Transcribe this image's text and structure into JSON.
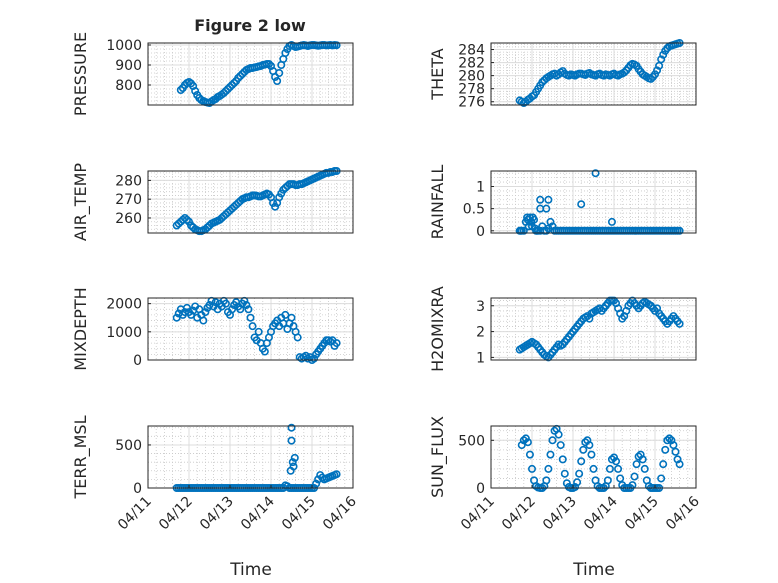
{
  "figure": {
    "title": "Figure 2 low",
    "xlabel": "Time"
  },
  "chart_data": [
    {
      "type": "scatter",
      "ylabel": "PRESSURE",
      "yticks": [
        800,
        900,
        1000
      ],
      "ylim": [
        700,
        1010
      ],
      "x": [
        11.8,
        11.85,
        11.9,
        11.95,
        12.0,
        12.05,
        12.1,
        12.15,
        12.2,
        12.25,
        12.3,
        12.35,
        12.4,
        12.45,
        12.5,
        12.55,
        12.6,
        12.65,
        12.7,
        12.75,
        12.8,
        12.85,
        12.9,
        12.95,
        13.0,
        13.05,
        13.1,
        13.15,
        13.2,
        13.25,
        13.3,
        13.35,
        13.4,
        13.45,
        13.5,
        13.55,
        13.6,
        13.65,
        13.7,
        13.75,
        13.8,
        13.85,
        13.9,
        13.95,
        14.0,
        14.05,
        14.1,
        14.15,
        14.2,
        14.25,
        14.3,
        14.35,
        14.4,
        14.45,
        14.5,
        14.55,
        14.6,
        14.65,
        14.7,
        14.75,
        14.8,
        14.85,
        14.9,
        14.95,
        15.0,
        15.05,
        15.1,
        15.15,
        15.2,
        15.25,
        15.3,
        15.35,
        15.4,
        15.45,
        15.5,
        15.55,
        15.6
      ],
      "y": [
        775,
        785,
        800,
        810,
        815,
        808,
        795,
        770,
        750,
        735,
        725,
        720,
        715,
        712,
        710,
        718,
        725,
        730,
        740,
        745,
        752,
        760,
        770,
        780,
        790,
        800,
        810,
        820,
        835,
        845,
        855,
        865,
        875,
        880,
        885,
        885,
        888,
        890,
        893,
        895,
        900,
        902,
        905,
        905,
        895,
        870,
        840,
        820,
        860,
        900,
        930,
        960,
        980,
        995,
        1000,
        995,
        990,
        992,
        995,
        998,
        1000,
        998,
        995,
        998,
        1000,
        1000,
        998,
        996,
        998,
        1000,
        1000,
        998,
        999,
        1000,
        998,
        1000,
        999
      ]
    },
    {
      "type": "scatter",
      "ylabel": "THETA",
      "yticks": [
        276,
        278,
        280,
        282,
        284
      ],
      "ylim": [
        275.5,
        285
      ],
      "x": [
        11.7,
        11.75,
        11.8,
        11.85,
        11.9,
        11.95,
        12.0,
        12.05,
        12.1,
        12.15,
        12.2,
        12.25,
        12.3,
        12.35,
        12.4,
        12.45,
        12.5,
        12.55,
        12.6,
        12.65,
        12.7,
        12.75,
        12.8,
        12.85,
        12.9,
        12.95,
        13.0,
        13.05,
        13.1,
        13.15,
        13.2,
        13.25,
        13.3,
        13.35,
        13.4,
        13.45,
        13.5,
        13.55,
        13.6,
        13.65,
        13.7,
        13.75,
        13.8,
        13.85,
        13.9,
        13.95,
        14.0,
        14.05,
        14.1,
        14.15,
        14.2,
        14.25,
        14.3,
        14.35,
        14.4,
        14.45,
        14.5,
        14.55,
        14.6,
        14.65,
        14.7,
        14.75,
        14.8,
        14.85,
        14.9,
        14.95,
        15.0,
        15.05,
        15.1,
        15.15,
        15.2,
        15.25,
        15.3,
        15.35,
        15.4,
        15.45,
        15.5,
        15.55,
        15.6
      ],
      "y": [
        276.2,
        276.0,
        275.8,
        276.0,
        276.3,
        276.5,
        276.8,
        277.0,
        277.5,
        278.0,
        278.5,
        279.0,
        279.3,
        279.6,
        279.8,
        280.0,
        280.2,
        280.3,
        280.0,
        280.2,
        280.5,
        280.7,
        280.3,
        280.1,
        280.0,
        280.2,
        280.1,
        280.0,
        280.2,
        280.3,
        280.3,
        280.2,
        280.1,
        280.3,
        280.4,
        280.2,
        280.1,
        280.0,
        280.2,
        280.3,
        280.1,
        280.0,
        280.2,
        280.1,
        280.0,
        280.2,
        280.3,
        280.1,
        280.0,
        280.2,
        280.3,
        280.5,
        280.8,
        281.2,
        281.6,
        281.8,
        281.7,
        281.5,
        281.0,
        280.6,
        280.2,
        280.0,
        279.8,
        279.6,
        279.5,
        279.8,
        280.2,
        280.8,
        281.5,
        282.5,
        283.2,
        283.8,
        284.2,
        284.5,
        284.6,
        284.7,
        284.8,
        284.9,
        285.0
      ]
    },
    {
      "type": "scatter",
      "ylabel": "AIR_TEMP",
      "yticks": [
        260,
        270,
        280
      ],
      "ylim": [
        252,
        285
      ],
      "x": [
        11.7,
        11.75,
        11.8,
        11.85,
        11.9,
        11.95,
        12.0,
        12.05,
        12.1,
        12.15,
        12.2,
        12.25,
        12.3,
        12.35,
        12.4,
        12.45,
        12.5,
        12.55,
        12.6,
        12.65,
        12.7,
        12.75,
        12.8,
        12.85,
        12.9,
        12.95,
        13.0,
        13.05,
        13.1,
        13.15,
        13.2,
        13.25,
        13.3,
        13.35,
        13.4,
        13.45,
        13.5,
        13.55,
        13.6,
        13.65,
        13.7,
        13.75,
        13.8,
        13.85,
        13.9,
        13.95,
        14.0,
        14.05,
        14.1,
        14.15,
        14.2,
        14.25,
        14.3,
        14.35,
        14.4,
        14.45,
        14.5,
        14.55,
        14.6,
        14.65,
        14.7,
        14.75,
        14.8,
        14.85,
        14.9,
        14.95,
        15.0,
        15.05,
        15.1,
        15.15,
        15.2,
        15.25,
        15.3,
        15.35,
        15.4,
        15.45,
        15.5,
        15.55,
        15.6
      ],
      "y": [
        256,
        257,
        258,
        259,
        260,
        259,
        258,
        256,
        255,
        254,
        253.5,
        253,
        253,
        253.5,
        254,
        255,
        256,
        257,
        257.5,
        258,
        258.5,
        259,
        260,
        261,
        262,
        263,
        264,
        265,
        266,
        267,
        268,
        269,
        270,
        270.5,
        271,
        271,
        271.5,
        272,
        272,
        271.8,
        271.5,
        271.5,
        272,
        272.5,
        273,
        272.5,
        271,
        268,
        266,
        268,
        271,
        273,
        275,
        276,
        277,
        278,
        278,
        278,
        277.5,
        277.5,
        278,
        278,
        278.5,
        279,
        279.5,
        280,
        280.5,
        281,
        281.5,
        282,
        282.5,
        283,
        283.5,
        284,
        284,
        284.5,
        284.5,
        285,
        285
      ]
    },
    {
      "type": "scatter",
      "ylabel": "RAINFALL",
      "yticks": [
        0,
        0.5,
        1
      ],
      "yticklabels": [
        "0",
        "0.5",
        "1"
      ],
      "ylim": [
        -0.05,
        1.35
      ],
      "x": [
        11.7,
        11.72,
        11.75,
        11.8,
        11.85,
        11.88,
        11.9,
        11.92,
        11.95,
        11.98,
        12.0,
        12.02,
        12.05,
        12.08,
        12.1,
        12.12,
        12.15,
        12.2,
        12.25,
        12.3,
        12.35,
        12.4,
        12.45,
        12.5,
        12.55,
        12.6,
        12.65,
        12.7,
        12.75,
        12.8,
        12.85,
        12.9,
        12.95,
        13.0,
        13.05,
        13.1,
        13.15,
        13.2,
        13.25,
        13.3,
        13.35,
        13.4,
        13.45,
        13.5,
        13.55,
        13.6,
        13.65,
        13.7,
        13.75,
        13.8,
        13.85,
        13.9,
        13.95,
        14.0,
        14.05,
        14.1,
        14.15,
        14.2,
        14.25,
        14.3,
        14.35,
        14.4,
        14.45,
        14.5,
        14.55,
        14.6,
        14.65,
        14.7,
        14.75,
        14.8,
        14.85,
        14.9,
        14.95,
        15.0,
        15.05,
        15.1,
        15.15,
        15.2,
        15.25,
        15.3,
        15.35,
        15.4,
        15.45,
        15.5,
        15.55,
        15.6,
        12.2,
        12.2,
        12.35,
        12.4,
        13.2,
        13.55,
        13.95
      ],
      "y": [
        0,
        0,
        0,
        0,
        0.2,
        0.3,
        0.25,
        0.1,
        0.3,
        0.2,
        0.1,
        0.3,
        0.25,
        0.05,
        0,
        0,
        0,
        0,
        0.1,
        0,
        0,
        0.05,
        0.2,
        0.1,
        0,
        0,
        0,
        0,
        0,
        0,
        0,
        0,
        0,
        0,
        0,
        0,
        0,
        0,
        0,
        0,
        0,
        0,
        0,
        0,
        0,
        0,
        0,
        0,
        0,
        0,
        0,
        0,
        0,
        0,
        0,
        0,
        0,
        0,
        0,
        0,
        0,
        0,
        0,
        0,
        0,
        0,
        0,
        0,
        0,
        0,
        0,
        0,
        0,
        0,
        0,
        0,
        0,
        0,
        0,
        0,
        0,
        0,
        0,
        0,
        0,
        0,
        0.7,
        0.5,
        0.5,
        0.7,
        0.6,
        1.3,
        0.2
      ]
    },
    {
      "type": "scatter",
      "ylabel": "MIXDEPTH",
      "yticks": [
        0,
        1000,
        2000
      ],
      "ylim": [
        0,
        2200
      ],
      "x": [
        11.7,
        11.75,
        11.8,
        11.85,
        11.9,
        11.95,
        12.0,
        12.05,
        12.1,
        12.15,
        12.2,
        12.25,
        12.3,
        12.35,
        12.4,
        12.45,
        12.5,
        12.55,
        12.6,
        12.65,
        12.7,
        12.75,
        12.8,
        12.85,
        12.9,
        12.95,
        13.0,
        13.05,
        13.1,
        13.15,
        13.2,
        13.25,
        13.3,
        13.35,
        13.4,
        13.45,
        13.5,
        13.55,
        13.6,
        13.65,
        13.7,
        13.75,
        13.8,
        13.85,
        13.9,
        13.95,
        14.0,
        14.05,
        14.1,
        14.15,
        14.2,
        14.25,
        14.3,
        14.35,
        14.4,
        14.45,
        14.5,
        14.55,
        14.6,
        14.65,
        14.7,
        14.75,
        14.8,
        14.85,
        14.9,
        14.95,
        15.0,
        15.05,
        15.1,
        15.15,
        15.2,
        15.25,
        15.3,
        15.35,
        15.4,
        15.45,
        15.5,
        15.55,
        15.6
      ],
      "y": [
        1500,
        1650,
        1800,
        1600,
        1700,
        1850,
        1700,
        1600,
        1750,
        1900,
        1500,
        1800,
        1600,
        1400,
        1700,
        1850,
        1950,
        2100,
        1900,
        2050,
        1800,
        2000,
        1900,
        2100,
        2000,
        1700,
        1600,
        1800,
        1950,
        2050,
        1900,
        1800,
        2000,
        2100,
        1950,
        1800,
        1500,
        1200,
        800,
        700,
        1000,
        600,
        400,
        300,
        600,
        800,
        1000,
        1200,
        1300,
        1400,
        1200,
        1500,
        1300,
        1600,
        1100,
        1300,
        1500,
        1200,
        1000,
        800,
        100,
        50,
        100,
        150,
        50,
        100,
        0,
        50,
        200,
        300,
        400,
        500,
        600,
        700,
        700,
        650,
        700,
        500,
        600
      ]
    },
    {
      "type": "scatter",
      "ylabel": "H2OMIXRA",
      "yticks": [
        1,
        2,
        3
      ],
      "ylim": [
        0.9,
        3.3
      ],
      "x": [
        11.7,
        11.75,
        11.8,
        11.85,
        11.9,
        11.95,
        12.0,
        12.05,
        12.1,
        12.15,
        12.2,
        12.25,
        12.3,
        12.35,
        12.4,
        12.45,
        12.5,
        12.55,
        12.6,
        12.65,
        12.7,
        12.75,
        12.8,
        12.85,
        12.9,
        12.95,
        13.0,
        13.05,
        13.1,
        13.15,
        13.2,
        13.25,
        13.3,
        13.35,
        13.4,
        13.45,
        13.5,
        13.55,
        13.6,
        13.65,
        13.7,
        13.75,
        13.8,
        13.85,
        13.9,
        13.95,
        14.0,
        14.05,
        14.1,
        14.15,
        14.2,
        14.25,
        14.3,
        14.35,
        14.4,
        14.45,
        14.5,
        14.55,
        14.6,
        14.65,
        14.7,
        14.75,
        14.8,
        14.85,
        14.9,
        14.95,
        15.0,
        15.05,
        15.1,
        15.15,
        15.2,
        15.25,
        15.3,
        15.35,
        15.4,
        15.45,
        15.5,
        15.55,
        15.6
      ],
      "y": [
        1.3,
        1.35,
        1.4,
        1.45,
        1.5,
        1.55,
        1.6,
        1.55,
        1.5,
        1.4,
        1.3,
        1.2,
        1.1,
        1.05,
        1.0,
        1.1,
        1.2,
        1.3,
        1.4,
        1.5,
        1.45,
        1.5,
        1.6,
        1.7,
        1.8,
        1.9,
        2.0,
        2.1,
        2.2,
        2.3,
        2.4,
        2.5,
        2.55,
        2.6,
        2.5,
        2.7,
        2.75,
        2.8,
        2.85,
        2.9,
        2.8,
        2.9,
        3.0,
        3.1,
        3.2,
        3.2,
        3.2,
        3.1,
        2.9,
        2.7,
        2.5,
        2.6,
        2.8,
        3.0,
        3.1,
        3.2,
        3.1,
        3.0,
        2.9,
        3.0,
        3.1,
        3.15,
        3.1,
        3.05,
        3.0,
        2.9,
        2.8,
        2.9,
        2.7,
        2.6,
        2.5,
        2.4,
        2.3,
        2.4,
        2.5,
        2.6,
        2.5,
        2.4,
        2.3
      ]
    },
    {
      "type": "scatter",
      "ylabel": "TERR_MSL",
      "yticks": [
        0,
        500
      ],
      "ylim": [
        0,
        720
      ],
      "x": [
        11.7,
        11.75,
        11.8,
        11.85,
        11.9,
        11.95,
        12.0,
        12.05,
        12.1,
        12.15,
        12.2,
        12.25,
        12.3,
        12.35,
        12.4,
        12.45,
        12.5,
        12.55,
        12.6,
        12.65,
        12.7,
        12.75,
        12.8,
        12.85,
        12.9,
        12.95,
        13.0,
        13.05,
        13.1,
        13.15,
        13.2,
        13.25,
        13.3,
        13.35,
        13.4,
        13.45,
        13.5,
        13.55,
        13.6,
        13.65,
        13.7,
        13.75,
        13.8,
        13.85,
        13.9,
        13.95,
        14.0,
        14.05,
        14.1,
        14.15,
        14.2,
        14.25,
        14.3,
        14.35,
        14.4,
        14.45,
        14.5,
        14.55,
        14.6,
        14.65,
        14.7,
        14.75,
        14.8,
        14.85,
        14.9,
        14.95,
        15.0,
        15.05,
        15.1,
        15.15,
        15.2,
        15.25,
        15.3,
        15.35,
        15.4,
        15.45,
        15.5,
        15.55,
        15.6,
        14.48,
        14.5,
        14.5,
        14.53,
        14.55,
        14.58
      ],
      "y": [
        0,
        0,
        0,
        0,
        0,
        0,
        0,
        0,
        0,
        0,
        0,
        0,
        0,
        0,
        0,
        0,
        0,
        0,
        0,
        0,
        0,
        0,
        0,
        0,
        0,
        0,
        0,
        0,
        0,
        0,
        0,
        0,
        0,
        0,
        0,
        0,
        0,
        0,
        0,
        0,
        0,
        0,
        0,
        0,
        0,
        0,
        0,
        0,
        0,
        0,
        0,
        0,
        0,
        30,
        20,
        0,
        0,
        0,
        0,
        0,
        0,
        0,
        0,
        0,
        0,
        0,
        0,
        0,
        50,
        100,
        150,
        120,
        100,
        110,
        120,
        130,
        140,
        150,
        160,
        200,
        700,
        550,
        300,
        250,
        350
      ]
    },
    {
      "type": "scatter",
      "ylabel": "SUN_FLUX",
      "yticks": [
        0,
        500
      ],
      "ylim": [
        0,
        650
      ],
      "x": [
        11.75,
        11.8,
        11.85,
        11.9,
        11.95,
        12.0,
        12.05,
        12.1,
        12.15,
        12.2,
        12.25,
        12.3,
        12.35,
        12.4,
        12.45,
        12.5,
        12.55,
        12.6,
        12.65,
        12.7,
        12.75,
        12.8,
        12.85,
        12.9,
        12.95,
        13.0,
        13.05,
        13.1,
        13.15,
        13.2,
        13.25,
        13.3,
        13.35,
        13.4,
        13.45,
        13.5,
        13.55,
        13.6,
        13.65,
        13.7,
        13.75,
        13.8,
        13.85,
        13.9,
        13.95,
        14.0,
        14.05,
        14.1,
        14.15,
        14.2,
        14.25,
        14.3,
        14.35,
        14.4,
        14.45,
        14.5,
        14.55,
        14.6,
        14.65,
        14.7,
        14.75,
        14.8,
        14.85,
        14.9,
        14.95,
        15.0,
        15.05,
        15.1,
        15.15,
        15.2,
        15.25,
        15.3,
        15.35,
        15.4,
        15.45,
        15.5,
        15.55,
        15.6
      ],
      "y": [
        450,
        500,
        520,
        480,
        350,
        200,
        80,
        20,
        5,
        0,
        0,
        20,
        80,
        200,
        350,
        500,
        600,
        620,
        560,
        450,
        300,
        150,
        50,
        10,
        0,
        0,
        10,
        60,
        150,
        280,
        400,
        480,
        500,
        450,
        350,
        200,
        80,
        20,
        0,
        0,
        0,
        20,
        80,
        200,
        300,
        320,
        280,
        200,
        100,
        30,
        0,
        0,
        0,
        0,
        30,
        120,
        250,
        330,
        350,
        300,
        200,
        80,
        20,
        0,
        0,
        0,
        0,
        0,
        100,
        250,
        400,
        500,
        520,
        500,
        450,
        380,
        300,
        250
      ]
    }
  ],
  "x_axis": {
    "xlim": [
      11,
      16
    ],
    "ticks": [
      11,
      12,
      13,
      14,
      15,
      16
    ],
    "tick_labels": [
      "04/11",
      "04/12",
      "04/13",
      "04/14",
      "04/15",
      "04/16"
    ]
  }
}
